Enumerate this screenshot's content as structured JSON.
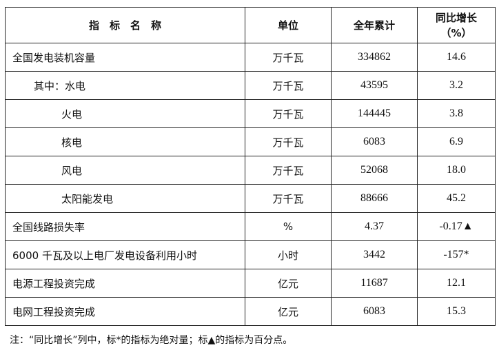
{
  "header": {
    "name": "指　标　名　称",
    "unit": "单位",
    "total": "全年累计",
    "growth": "同比增长",
    "growth_unit": "（%）"
  },
  "rows": [
    {
      "name": "全国发电装机容量",
      "unit": "万千瓦",
      "total": "334862",
      "growth": "14.6",
      "indent": 0
    },
    {
      "name": "其中：水电",
      "unit": "万千瓦",
      "total": "43595",
      "growth": "3.2",
      "indent": 1
    },
    {
      "name": "火电",
      "unit": "万千瓦",
      "total": "144445",
      "growth": "3.8",
      "indent": 2
    },
    {
      "name": "核电",
      "unit": "万千瓦",
      "total": "6083",
      "growth": "6.9",
      "indent": 2
    },
    {
      "name": "风电",
      "unit": "万千瓦",
      "total": "52068",
      "growth": "18.0",
      "indent": 2
    },
    {
      "name": "太阳能发电",
      "unit": "万千瓦",
      "total": "88666",
      "growth": "45.2",
      "indent": 2
    },
    {
      "name": "全国线路损失率",
      "unit": "%",
      "total": "4.37",
      "growth": "-0.17▲",
      "indent": 0
    },
    {
      "name": "6000 千瓦及以上电厂发电设备利用小时",
      "unit": "小时",
      "total": "3442",
      "growth": "-157*",
      "indent": 0
    },
    {
      "name": "电源工程投资完成",
      "unit": "亿元",
      "total": "11687",
      "growth": "12.1",
      "indent": 0
    },
    {
      "name": "电网工程投资完成",
      "unit": "亿元",
      "total": "6083",
      "growth": "15.3",
      "indent": 0
    }
  ],
  "note": "注：“同比增长”列中，标*的指标为绝对量；标▲的指标为百分点。"
}
